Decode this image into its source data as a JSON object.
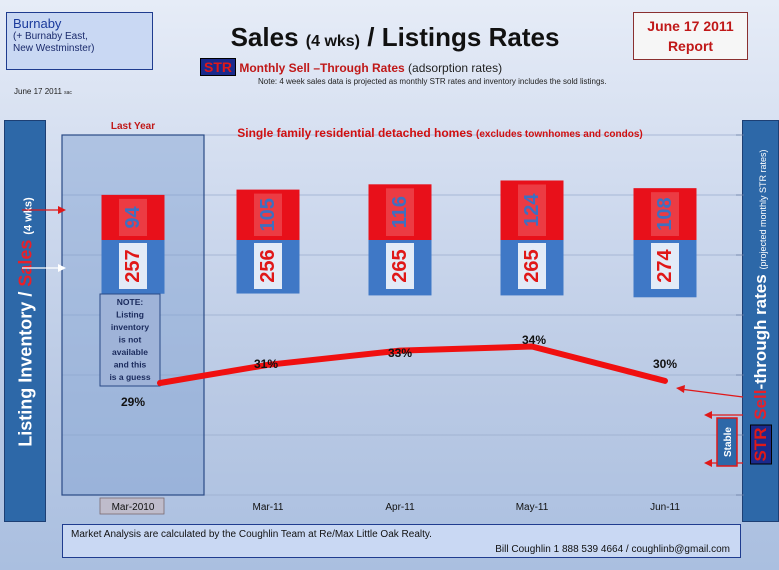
{
  "header": {
    "area_name": "Burnaby",
    "area_note_1": "(+ Burnaby East,",
    "area_note_2": "New Westminster)",
    "report_date": "June 17 2011",
    "report_label": "Report",
    "title_main": "Sales",
    "title_small": "(4 wks)",
    "title_rest": "/ Listings Rates",
    "str_badge": "STR",
    "subtitle_red": "Monthly Sell –Through Rates",
    "subtitle_rest": "(adsorption rates)",
    "note": "Note: 4 week sales data is projected as monthly STR rates and inventory includes the sold listings.",
    "date_small": "June 17 2011",
    "date_tiny": "sac"
  },
  "left_axis": {
    "label_a": "Listing Inventory /",
    "label_b": "Sales",
    "label_c": "(4 wks)"
  },
  "right_axis": {
    "str": "STR",
    "label_red": "Sell",
    "label_rest": "-through rates",
    "label_small": "(projected monthly STR rates)"
  },
  "chart_data": {
    "type": "bar",
    "title": "Single family residential detached homes",
    "subtitle": "(excludes townhomes and condos)",
    "categories": [
      "Mar-2010",
      "Mar-11",
      "Apr-11",
      "May-11",
      "Jun-11"
    ],
    "series": [
      {
        "name": "Listing Inventory",
        "values": [
          257,
          256,
          265,
          265,
          274
        ]
      },
      {
        "name": "Sales (4 wks)",
        "values": [
          94,
          105,
          116,
          124,
          108
        ]
      }
    ],
    "str_rates": [
      "29%",
      "31%",
      "33%",
      "34%",
      "30%"
    ],
    "str_values": [
      29,
      31,
      33,
      34,
      30
    ],
    "highlight_label": "Last Year",
    "highlight_note": [
      "NOTE:",
      "Listing",
      "inventory",
      "is not",
      "available",
      "and this",
      "is a guess"
    ],
    "trend_label": "Stable"
  },
  "footer": {
    "line1": "Market Analysis are calculated by  the  Coughlin Team at Re/Max Little Oak Realty.",
    "line2": "Bill Coughlin 1 888 539 4664 / coughlinb@gmail.com"
  },
  "colors": {
    "sales_bar": "#e8101a",
    "inventory_bar": "#3f78c6",
    "str_line": "#f01010",
    "panel": "#2d68a8"
  }
}
